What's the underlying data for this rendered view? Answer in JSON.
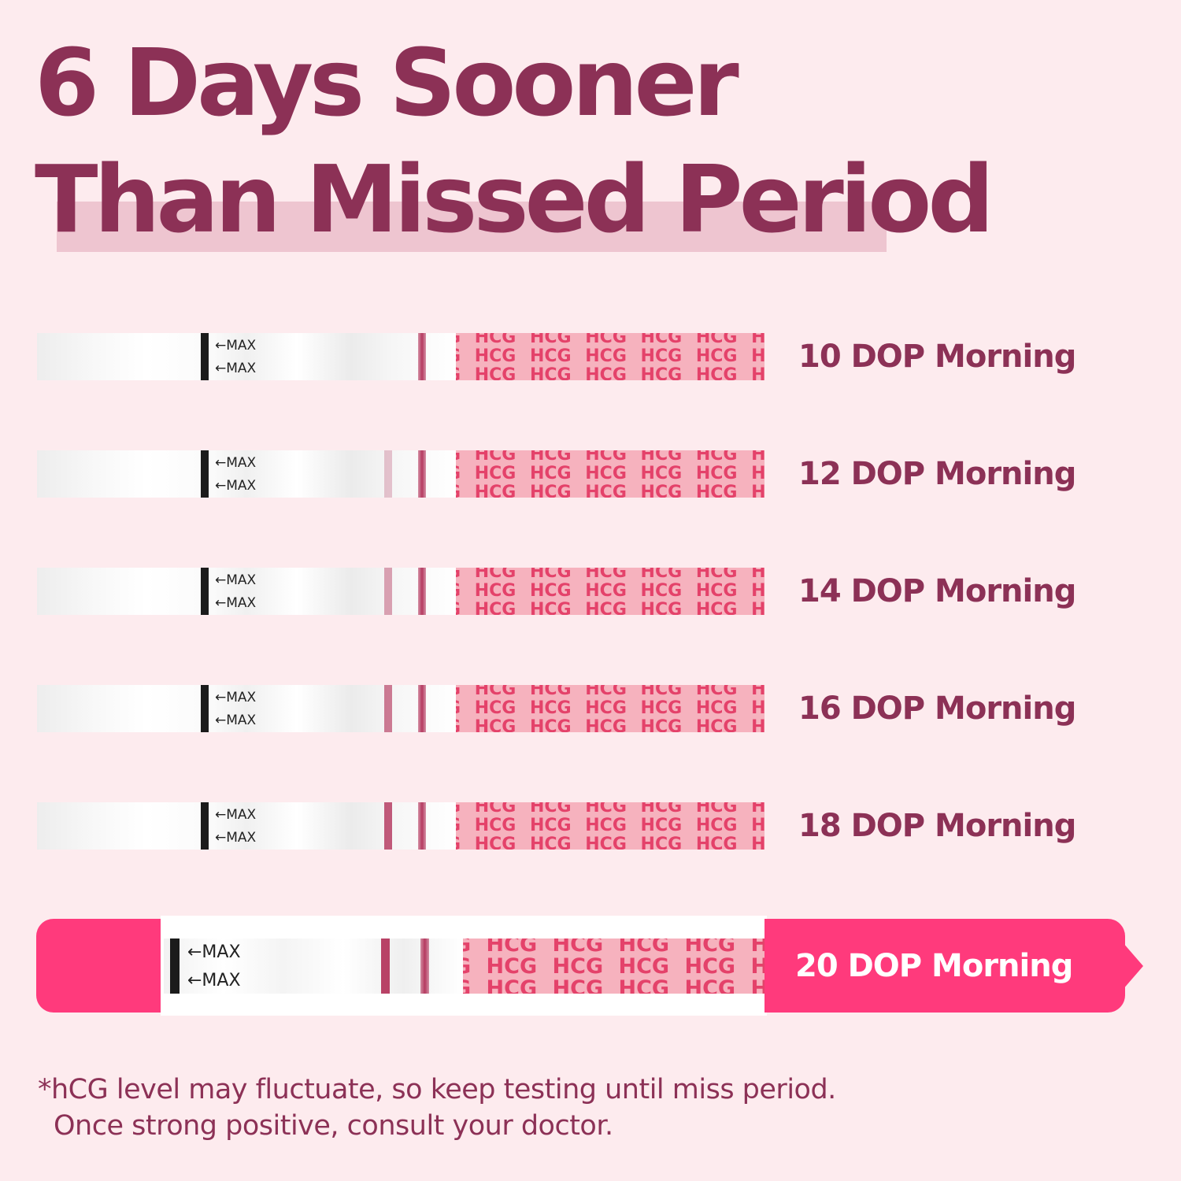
{
  "headline": {
    "line1": "6 Days Sooner",
    "line2": "Than Missed Period"
  },
  "strip_text": {
    "max_label": "←MAX",
    "pad_text": "HCG"
  },
  "colors": {
    "headline": "#8c3156",
    "accent_pink": "#ff3a7c",
    "pad": "#f6b2be",
    "pad_text": "#e4426a",
    "control_line": "#b53a60",
    "background": "#fdebee"
  },
  "tests": [
    {
      "label": "10 DOP Morning",
      "test_line_intensity": 0.0
    },
    {
      "label": "12 DOP Morning",
      "test_line_intensity": 0.15
    },
    {
      "label": "14 DOP Morning",
      "test_line_intensity": 0.35
    },
    {
      "label": "16 DOP Morning",
      "test_line_intensity": 0.6
    },
    {
      "label": "18 DOP Morning",
      "test_line_intensity": 0.8
    },
    {
      "label": "20 DOP Morning",
      "test_line_intensity": 0.95,
      "highlighted": true
    }
  ],
  "footnote": {
    "line1": "*hCG level may fluctuate, so keep testing until miss period.",
    "line2": "Once strong positive, consult your doctor."
  }
}
